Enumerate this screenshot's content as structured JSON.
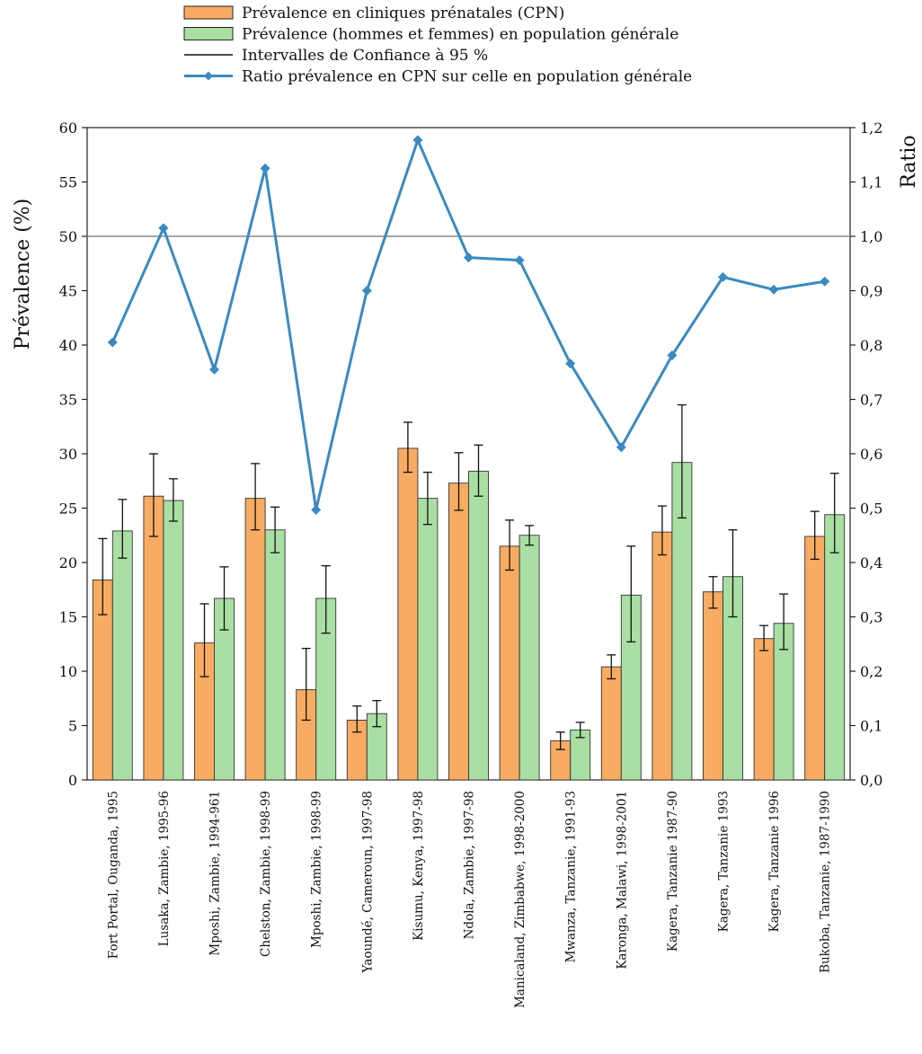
{
  "chart_data": {
    "type": "bar",
    "legend": {
      "placement": "top",
      "entries": [
        "Prévalence en cliniques prénatales (CPN)",
        "Prévalence (hommes et femmes) en population générale",
        "Intervalles de Confiance à 95 %",
        "Ratio prévalence en CPN sur celle en population générale"
      ]
    },
    "ylabel": "Prévalence (%)",
    "y2label": "Ratio",
    "ylim": [
      0,
      60
    ],
    "y2lim": [
      0,
      1.2
    ],
    "yticks": [
      "0",
      "5",
      "10",
      "15",
      "20",
      "25",
      "30",
      "35",
      "40",
      "45",
      "50",
      "55",
      "60"
    ],
    "y2ticks": [
      "0,0",
      "0,1",
      "0,2",
      "0,3",
      "0,4",
      "0,5",
      "0,6",
      "0,7",
      "0,8",
      "0,9",
      "1,0",
      "1,1",
      "1,2"
    ],
    "reference_line": 50,
    "categories": [
      "Fort Portal, Ouganda, 1995",
      "Lusaka, Zambie, 1995-96",
      "Mposhi, Zambie, 1994-961",
      "Chelston, Zambie, 1998-99",
      "Mposhi, Zambie, 1998-99",
      "Yaoundé, Cameroun, 1997-98",
      "Kisumu, Kenya, 1997-98",
      "Ndola, Zambie, 1997-98",
      "Manicaland, Zimbabwe, 1998-2000",
      "Mwanza, Tanzanie, 1991-93",
      "Karonga, Malawi, 1998-2001",
      "Kagera, Tanzanie 1987-90",
      "Kagera, Tanzanie 1993",
      "Kagera, Tanzanie 1996",
      "Bukoba, Tanzanie, 1987-1990"
    ],
    "series": [
      {
        "name": "Prévalence en cliniques prénatales (CPN)",
        "color": "#f8ab62",
        "values": [
          18.4,
          26.1,
          12.6,
          25.9,
          8.3,
          5.5,
          30.5,
          27.3,
          21.5,
          3.6,
          10.4,
          22.8,
          17.3,
          13.0,
          22.4
        ],
        "ci_low": [
          15.2,
          22.4,
          9.5,
          23.0,
          5.5,
          4.4,
          28.3,
          24.8,
          19.3,
          2.8,
          9.3,
          20.7,
          15.8,
          11.9,
          20.3
        ],
        "ci_high": [
          22.2,
          30.0,
          16.2,
          29.1,
          12.1,
          6.8,
          32.9,
          30.1,
          23.9,
          4.4,
          11.5,
          25.2,
          18.7,
          14.2,
          24.7
        ]
      },
      {
        "name": "Prévalence (hommes et femmes) en population générale",
        "color": "#a9dfa3",
        "values": [
          22.9,
          25.7,
          16.7,
          23.0,
          16.7,
          6.1,
          25.9,
          28.4,
          22.5,
          4.6,
          17.0,
          29.2,
          18.7,
          14.4,
          24.4
        ],
        "ci_low": [
          20.4,
          23.8,
          13.8,
          20.9,
          13.5,
          4.9,
          23.5,
          26.1,
          21.6,
          3.9,
          12.7,
          24.1,
          15.0,
          12.0,
          20.9
        ],
        "ci_high": [
          25.8,
          27.7,
          19.6,
          25.1,
          19.7,
          7.3,
          28.3,
          30.8,
          23.4,
          5.3,
          21.5,
          34.5,
          23.0,
          17.1,
          28.2
        ]
      },
      {
        "name": "Ratio prévalence en CPN sur celle en population générale",
        "type": "line",
        "axis": "right",
        "color": "#3a8ac2",
        "values": [
          0.805,
          1.015,
          0.755,
          1.125,
          0.497,
          0.9,
          1.177,
          0.961,
          0.956,
          0.766,
          0.612,
          0.781,
          0.925,
          0.902,
          0.917
        ]
      }
    ],
    "grid": false
  }
}
